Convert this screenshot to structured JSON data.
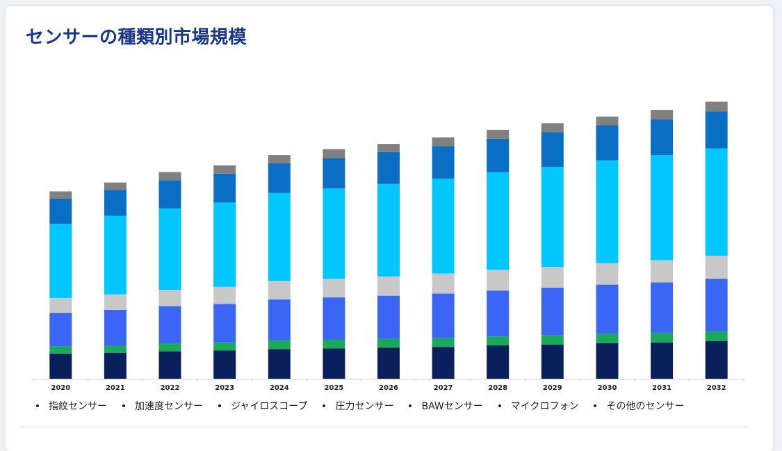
{
  "title": "センサーの種類別市場規模",
  "chart_data": {
    "type": "bar",
    "stacked": true,
    "title": "センサーの種類別市場規模",
    "categories": [
      "2020",
      "2021",
      "2022",
      "2023",
      "2024",
      "2025",
      "2026",
      "2027",
      "2028",
      "2029",
      "2030",
      "2031",
      "2032"
    ],
    "ylim": [
      0,
      380
    ],
    "grid": false,
    "legend_position": "bottom",
    "series": [
      {
        "name": "指紋センサー",
        "color": "#0a1f5c",
        "values": [
          34,
          35,
          37,
          38,
          40,
          41,
          42,
          43,
          45,
          46,
          48,
          49,
          51
        ]
      },
      {
        "name": "加速度センサー",
        "color": "#1aa85a",
        "values": [
          10,
          10,
          11,
          11,
          12,
          12,
          12,
          12,
          12,
          13,
          13,
          13,
          13
        ]
      },
      {
        "name": "ジャイロスコープ",
        "color": "#3b66f5",
        "values": [
          45,
          48,
          50,
          52,
          55,
          57,
          58,
          60,
          62,
          64,
          66,
          68,
          71
        ]
      },
      {
        "name": "圧力センサー",
        "color": "#c8c8c8",
        "values": [
          20,
          21,
          22,
          23,
          25,
          25,
          26,
          27,
          28,
          28,
          29,
          30,
          31
        ]
      },
      {
        "name": "BAWセンサー",
        "color": "#00c8ff",
        "values": [
          100,
          106,
          110,
          114,
          119,
          122,
          125,
          128,
          132,
          135,
          139,
          142,
          145
        ]
      },
      {
        "name": "マイクロフォン",
        "color": "#0a6ec4",
        "values": [
          34,
          35,
          38,
          39,
          40,
          41,
          43,
          44,
          45,
          47,
          47,
          48,
          50
        ]
      },
      {
        "name": "その他のセンサー",
        "color": "#808080",
        "values": [
          10,
          10,
          11,
          11,
          11,
          12,
          11,
          12,
          12,
          12,
          12,
          13,
          13
        ]
      }
    ]
  }
}
